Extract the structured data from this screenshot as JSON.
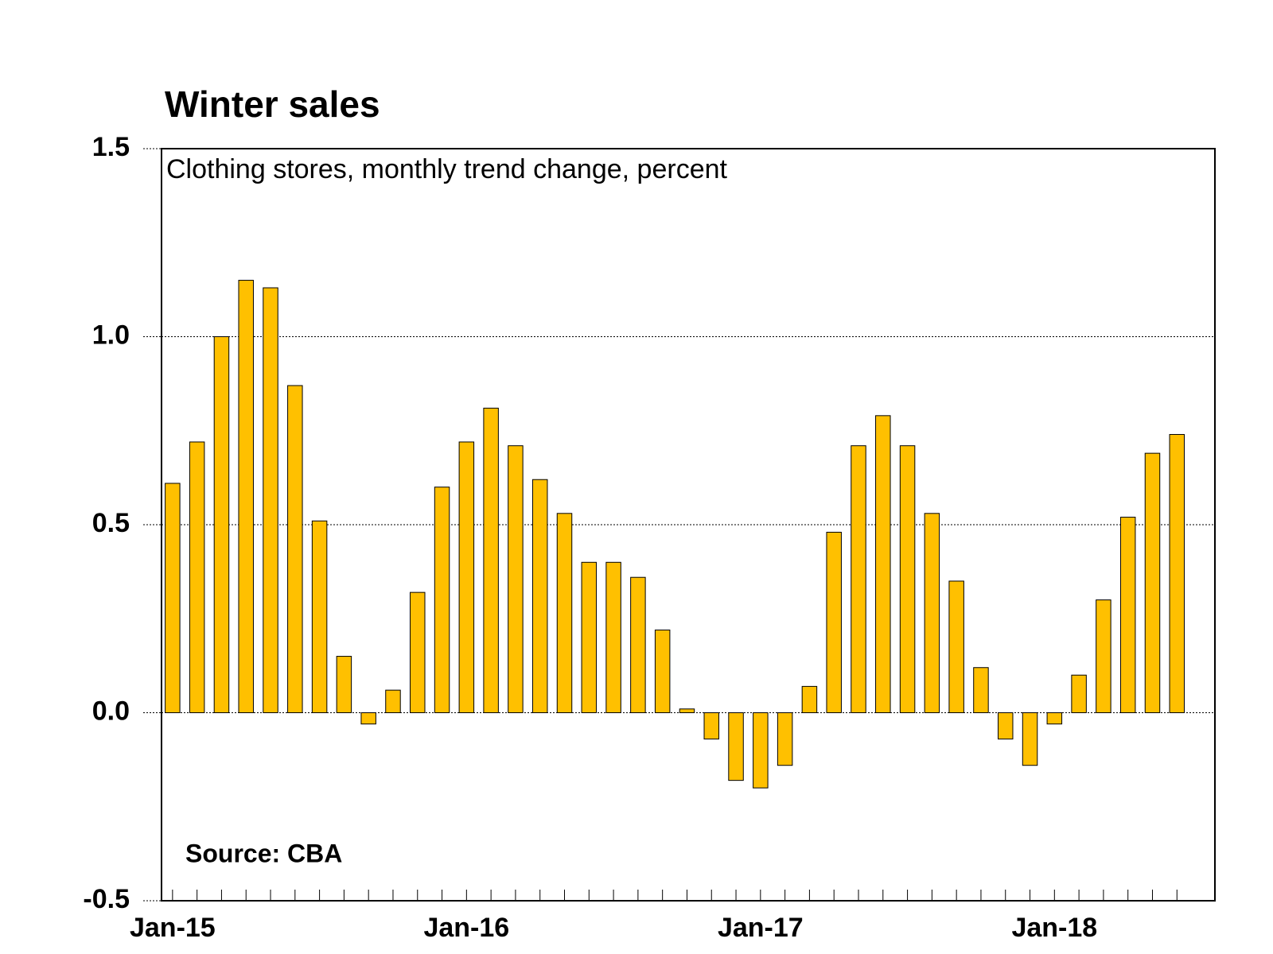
{
  "chart_data": {
    "type": "bar",
    "title": "Winter sales",
    "subtitle": "Clothing stores, monthly trend change, percent",
    "annotation": "Source: CBA",
    "categories": [
      "Jan-15",
      null,
      null,
      null,
      null,
      null,
      null,
      null,
      null,
      null,
      null,
      null,
      "Jan-16",
      null,
      null,
      null,
      null,
      null,
      null,
      null,
      null,
      null,
      null,
      null,
      "Jan-17",
      null,
      null,
      null,
      null,
      null,
      null,
      null,
      null,
      null,
      null,
      null,
      "Jan-18",
      null,
      null,
      null,
      null,
      null
    ],
    "values": [
      0.61,
      0.72,
      1.0,
      1.15,
      1.13,
      0.87,
      0.51,
      0.15,
      -0.03,
      0.06,
      0.32,
      0.6,
      0.72,
      0.81,
      0.71,
      0.62,
      0.53,
      0.4,
      0.4,
      0.36,
      0.22,
      0.01,
      -0.07,
      -0.18,
      -0.2,
      -0.14,
      0.07,
      0.48,
      0.71,
      0.79,
      0.71,
      0.53,
      0.35,
      0.12,
      -0.07,
      -0.14,
      -0.03,
      0.1,
      0.3,
      0.52,
      0.69,
      0.74
    ],
    "color": "#ffc000",
    "ylim": [
      -0.5,
      1.5
    ],
    "yticks": [
      -0.5,
      {
        "value": 0,
        "label": "0.0"
      },
      0.5,
      {
        "value": 1,
        "label": "1.0"
      },
      1.5
    ],
    "grid": true
  }
}
